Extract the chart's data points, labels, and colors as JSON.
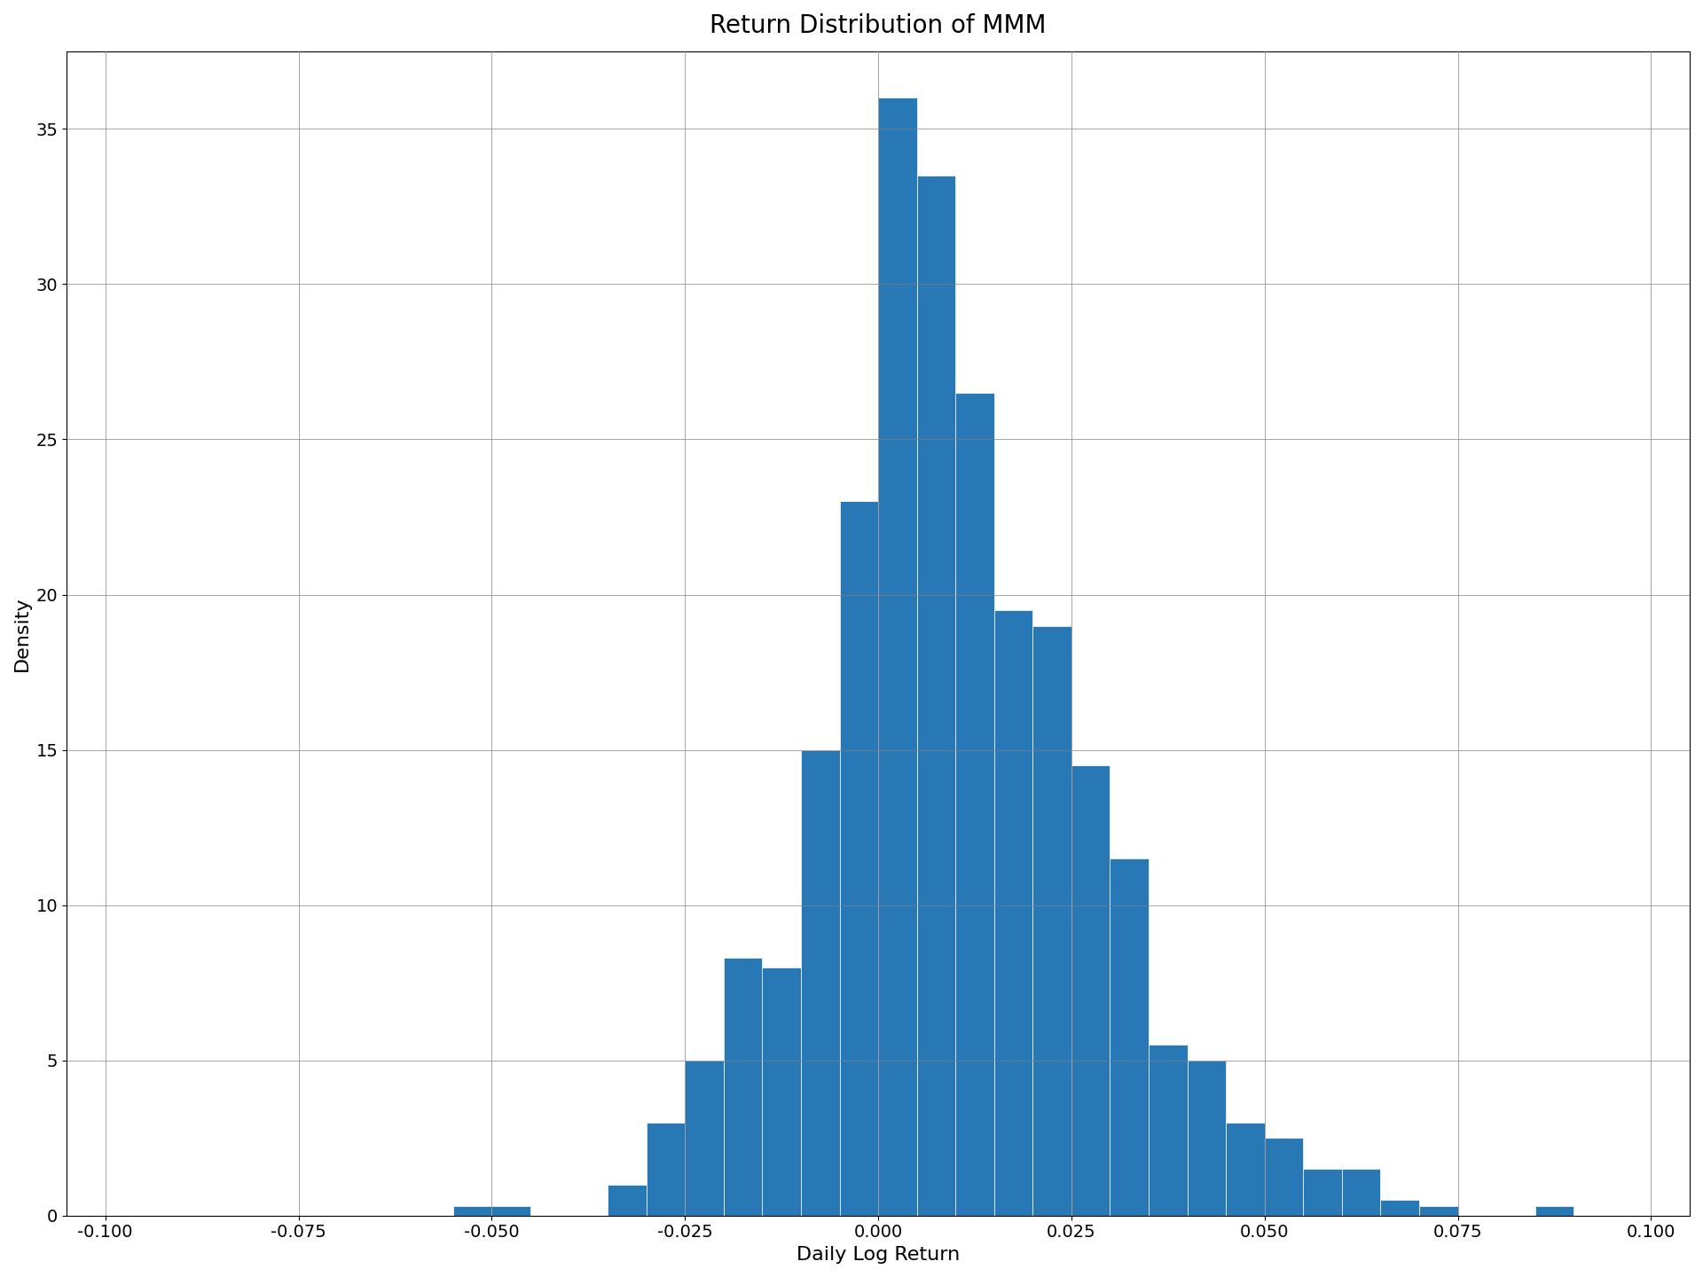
{
  "title": "Return Distribution of MMM",
  "xlabel": "Daily Log Return",
  "ylabel": "Density",
  "bar_color": "#2878b5",
  "bar_edgecolor": "white",
  "xlim": [
    -0.105,
    0.105
  ],
  "ylim": [
    0,
    37.5
  ],
  "figsize": [
    19.2,
    14.4
  ],
  "dpi": 100,
  "title_fontsize": 20,
  "label_fontsize": 16,
  "tick_fontsize": 14,
  "grid": true,
  "bin_width": 0.005,
  "bin_edges": [
    -0.1,
    -0.095,
    -0.09,
    -0.085,
    -0.08,
    -0.075,
    -0.07,
    -0.065,
    -0.06,
    -0.055,
    -0.05,
    -0.045,
    -0.04,
    -0.035,
    -0.03,
    -0.025,
    -0.02,
    -0.015,
    -0.01,
    -0.005,
    0.0,
    0.005,
    0.01,
    0.015,
    0.02,
    0.025,
    0.03,
    0.035,
    0.04,
    0.045,
    0.05,
    0.055,
    0.06,
    0.065,
    0.07,
    0.075,
    0.08,
    0.085,
    0.09,
    0.095,
    0.1
  ],
  "bar_heights": [
    0.0,
    0.0,
    0.0,
    0.0,
    0.0,
    0.0,
    0.0,
    0.0,
    0.0,
    0.3,
    0.3,
    0.0,
    0.0,
    1.0,
    3.0,
    5.0,
    8.3,
    8.0,
    15.0,
    23.0,
    36.0,
    33.5,
    26.5,
    19.5,
    19.0,
    14.5,
    11.5,
    5.5,
    5.0,
    3.0,
    2.5,
    1.5,
    1.5,
    0.5,
    0.3,
    0.0,
    0.0,
    0.3,
    0.0,
    0.0
  ],
  "yticks": [
    0,
    5,
    10,
    15,
    20,
    25,
    30,
    35
  ],
  "xticks": [
    -0.1,
    -0.075,
    -0.05,
    -0.025,
    0.0,
    0.025,
    0.05,
    0.075,
    0.1
  ]
}
